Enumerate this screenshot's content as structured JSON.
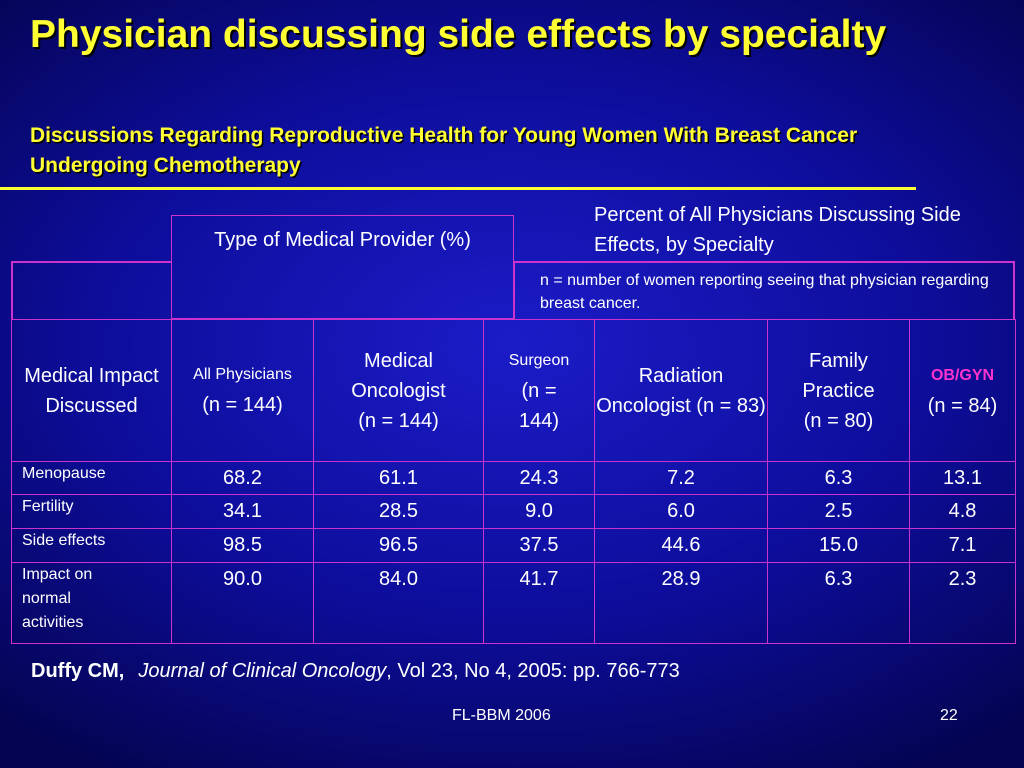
{
  "slide": {
    "title": "Physician discussing side effects by specialty",
    "subtitle": "Discussions Regarding Reproductive Health for Young Women With Breast Cancer Undergoing Chemotherapy",
    "percent_note": "Percent of All Physicians Discussing Side Effects, by Specialty",
    "n_note": "n = number of women reporting seeing that physician regarding breast cancer.",
    "provider_header": "Type of Medical Provider (%)",
    "citation": {
      "author": "Duffy CM,",
      "journal": "Journal of Clinical Oncology",
      "details": ", Vol 23, No 4, 2005: pp. 766-773"
    },
    "footer": "FL-BBM 2006",
    "page_number": "22"
  },
  "table": {
    "first_header": "Medical Impact Discussed",
    "columns": [
      {
        "name": "All Physicians",
        "n": "(n = 144)"
      },
      {
        "name": "Medical Oncologist",
        "n": "(n = 144)"
      },
      {
        "name": "Surgeon",
        "n": "(n = 144)"
      },
      {
        "name": "Radiation Oncologist",
        "n": "(n = 83)"
      },
      {
        "name": "Family Practice",
        "n": "(n = 80)"
      },
      {
        "name": "OB/GYN",
        "n": "(n = 84)"
      }
    ],
    "rows": [
      {
        "label": "Menopause",
        "values": [
          "68.2",
          "61.1",
          "24.3",
          "7.2",
          "6.3",
          "13.1"
        ]
      },
      {
        "label": "Fertility",
        "values": [
          "34.1",
          "28.5",
          "9.0",
          "6.0",
          "2.5",
          "4.8"
        ]
      },
      {
        "label": "Side effects",
        "values": [
          "98.5",
          "96.5",
          "37.5",
          "44.6",
          "15.0",
          "7.1"
        ]
      },
      {
        "label": "Impact on normal activities",
        "values": [
          "90.0",
          "84.0",
          "41.7",
          "28.9",
          "6.3",
          "2.3"
        ]
      }
    ]
  },
  "colors": {
    "title": "#ffff33",
    "background": "#1414b4",
    "table_border": "#cc33cc",
    "obgyn_label": "#ff33cc"
  }
}
